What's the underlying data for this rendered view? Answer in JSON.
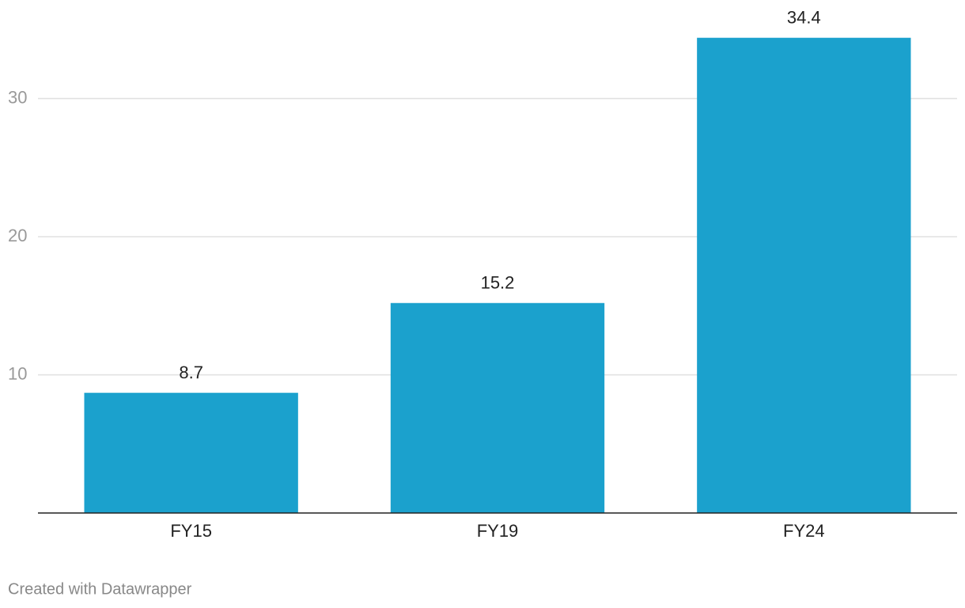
{
  "chart_data": {
    "type": "bar",
    "categories": [
      "FY15",
      "FY19",
      "FY24"
    ],
    "values": [
      8.7,
      15.2,
      34.4
    ],
    "color": "#1ba1cd",
    "ylim": [
      0,
      35
    ],
    "yticks": [
      10,
      20,
      30
    ],
    "grid": true,
    "credit": "Created with Datawrapper"
  }
}
